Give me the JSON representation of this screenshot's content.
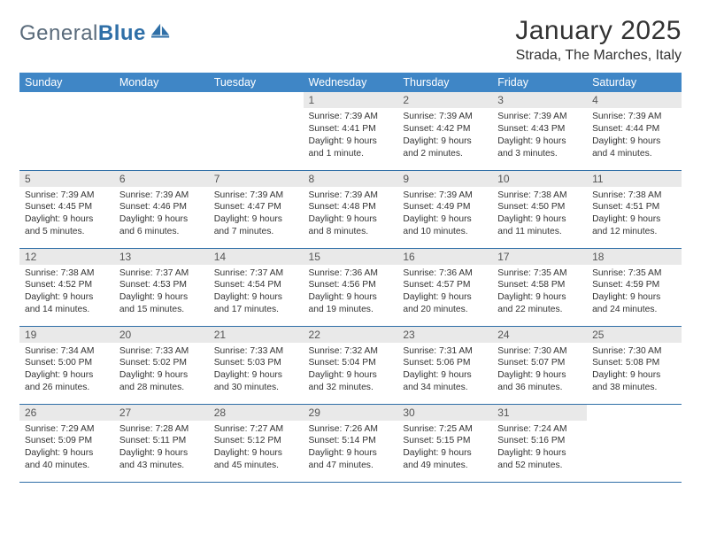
{
  "brand": {
    "name_part1": "General",
    "name_part2": "Blue"
  },
  "title": "January 2025",
  "location": "Strada, The Marches, Italy",
  "colors": {
    "header_bg": "#3f86c6",
    "header_text": "#ffffff",
    "daynum_bg": "#e9e9e9",
    "daynum_text": "#555555",
    "body_text": "#333333",
    "rule": "#2f6fa7",
    "logo_gray": "#5a6b7b",
    "logo_blue": "#2f6fa7"
  },
  "day_names": [
    "Sunday",
    "Monday",
    "Tuesday",
    "Wednesday",
    "Thursday",
    "Friday",
    "Saturday"
  ],
  "weeks": [
    [
      {
        "n": "",
        "lines": []
      },
      {
        "n": "",
        "lines": []
      },
      {
        "n": "",
        "lines": []
      },
      {
        "n": "1",
        "lines": [
          "Sunrise: 7:39 AM",
          "Sunset: 4:41 PM",
          "Daylight: 9 hours and 1 minute."
        ]
      },
      {
        "n": "2",
        "lines": [
          "Sunrise: 7:39 AM",
          "Sunset: 4:42 PM",
          "Daylight: 9 hours and 2 minutes."
        ]
      },
      {
        "n": "3",
        "lines": [
          "Sunrise: 7:39 AM",
          "Sunset: 4:43 PM",
          "Daylight: 9 hours and 3 minutes."
        ]
      },
      {
        "n": "4",
        "lines": [
          "Sunrise: 7:39 AM",
          "Sunset: 4:44 PM",
          "Daylight: 9 hours and 4 minutes."
        ]
      }
    ],
    [
      {
        "n": "5",
        "lines": [
          "Sunrise: 7:39 AM",
          "Sunset: 4:45 PM",
          "Daylight: 9 hours and 5 minutes."
        ]
      },
      {
        "n": "6",
        "lines": [
          "Sunrise: 7:39 AM",
          "Sunset: 4:46 PM",
          "Daylight: 9 hours and 6 minutes."
        ]
      },
      {
        "n": "7",
        "lines": [
          "Sunrise: 7:39 AM",
          "Sunset: 4:47 PM",
          "Daylight: 9 hours and 7 minutes."
        ]
      },
      {
        "n": "8",
        "lines": [
          "Sunrise: 7:39 AM",
          "Sunset: 4:48 PM",
          "Daylight: 9 hours and 8 minutes."
        ]
      },
      {
        "n": "9",
        "lines": [
          "Sunrise: 7:39 AM",
          "Sunset: 4:49 PM",
          "Daylight: 9 hours and 10 minutes."
        ]
      },
      {
        "n": "10",
        "lines": [
          "Sunrise: 7:38 AM",
          "Sunset: 4:50 PM",
          "Daylight: 9 hours and 11 minutes."
        ]
      },
      {
        "n": "11",
        "lines": [
          "Sunrise: 7:38 AM",
          "Sunset: 4:51 PM",
          "Daylight: 9 hours and 12 minutes."
        ]
      }
    ],
    [
      {
        "n": "12",
        "lines": [
          "Sunrise: 7:38 AM",
          "Sunset: 4:52 PM",
          "Daylight: 9 hours and 14 minutes."
        ]
      },
      {
        "n": "13",
        "lines": [
          "Sunrise: 7:37 AM",
          "Sunset: 4:53 PM",
          "Daylight: 9 hours and 15 minutes."
        ]
      },
      {
        "n": "14",
        "lines": [
          "Sunrise: 7:37 AM",
          "Sunset: 4:54 PM",
          "Daylight: 9 hours and 17 minutes."
        ]
      },
      {
        "n": "15",
        "lines": [
          "Sunrise: 7:36 AM",
          "Sunset: 4:56 PM",
          "Daylight: 9 hours and 19 minutes."
        ]
      },
      {
        "n": "16",
        "lines": [
          "Sunrise: 7:36 AM",
          "Sunset: 4:57 PM",
          "Daylight: 9 hours and 20 minutes."
        ]
      },
      {
        "n": "17",
        "lines": [
          "Sunrise: 7:35 AM",
          "Sunset: 4:58 PM",
          "Daylight: 9 hours and 22 minutes."
        ]
      },
      {
        "n": "18",
        "lines": [
          "Sunrise: 7:35 AM",
          "Sunset: 4:59 PM",
          "Daylight: 9 hours and 24 minutes."
        ]
      }
    ],
    [
      {
        "n": "19",
        "lines": [
          "Sunrise: 7:34 AM",
          "Sunset: 5:00 PM",
          "Daylight: 9 hours and 26 minutes."
        ]
      },
      {
        "n": "20",
        "lines": [
          "Sunrise: 7:33 AM",
          "Sunset: 5:02 PM",
          "Daylight: 9 hours and 28 minutes."
        ]
      },
      {
        "n": "21",
        "lines": [
          "Sunrise: 7:33 AM",
          "Sunset: 5:03 PM",
          "Daylight: 9 hours and 30 minutes."
        ]
      },
      {
        "n": "22",
        "lines": [
          "Sunrise: 7:32 AM",
          "Sunset: 5:04 PM",
          "Daylight: 9 hours and 32 minutes."
        ]
      },
      {
        "n": "23",
        "lines": [
          "Sunrise: 7:31 AM",
          "Sunset: 5:06 PM",
          "Daylight: 9 hours and 34 minutes."
        ]
      },
      {
        "n": "24",
        "lines": [
          "Sunrise: 7:30 AM",
          "Sunset: 5:07 PM",
          "Daylight: 9 hours and 36 minutes."
        ]
      },
      {
        "n": "25",
        "lines": [
          "Sunrise: 7:30 AM",
          "Sunset: 5:08 PM",
          "Daylight: 9 hours and 38 minutes."
        ]
      }
    ],
    [
      {
        "n": "26",
        "lines": [
          "Sunrise: 7:29 AM",
          "Sunset: 5:09 PM",
          "Daylight: 9 hours and 40 minutes."
        ]
      },
      {
        "n": "27",
        "lines": [
          "Sunrise: 7:28 AM",
          "Sunset: 5:11 PM",
          "Daylight: 9 hours and 43 minutes."
        ]
      },
      {
        "n": "28",
        "lines": [
          "Sunrise: 7:27 AM",
          "Sunset: 5:12 PM",
          "Daylight: 9 hours and 45 minutes."
        ]
      },
      {
        "n": "29",
        "lines": [
          "Sunrise: 7:26 AM",
          "Sunset: 5:14 PM",
          "Daylight: 9 hours and 47 minutes."
        ]
      },
      {
        "n": "30",
        "lines": [
          "Sunrise: 7:25 AM",
          "Sunset: 5:15 PM",
          "Daylight: 9 hours and 49 minutes."
        ]
      },
      {
        "n": "31",
        "lines": [
          "Sunrise: 7:24 AM",
          "Sunset: 5:16 PM",
          "Daylight: 9 hours and 52 minutes."
        ]
      },
      {
        "n": "",
        "lines": []
      }
    ]
  ]
}
